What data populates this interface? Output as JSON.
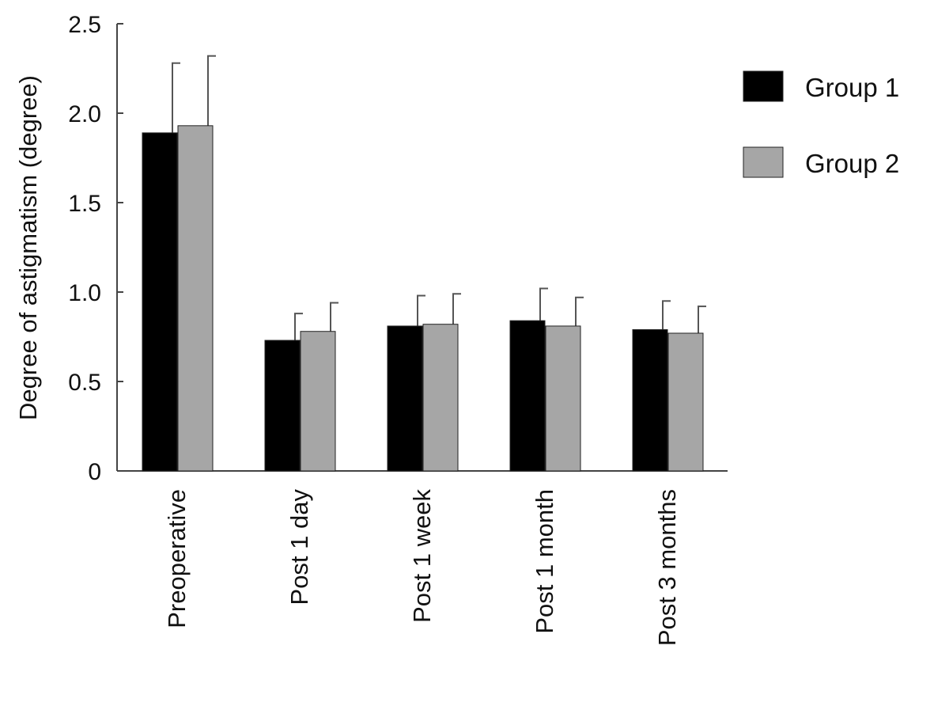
{
  "chart_data": {
    "type": "bar",
    "title": "",
    "xlabel": "",
    "ylabel": "Degree of astigmatism (degree)",
    "ylim": [
      0,
      2.5
    ],
    "yticks": [
      {
        "value": 0,
        "label": "0"
      },
      {
        "value": 0.5,
        "label": "0.5"
      },
      {
        "value": 1.0,
        "label": "1.0"
      },
      {
        "value": 1.5,
        "label": "1.5"
      },
      {
        "value": 2.0,
        "label": "2.0"
      },
      {
        "value": 2.5,
        "label": "2.5"
      }
    ],
    "categories": [
      "Preoperative",
      "Post 1 day",
      "Post 1 week",
      "Post 1 month",
      "Post 3 months"
    ],
    "series": [
      {
        "name": "Group 1",
        "color": "#000000",
        "values": [
          1.89,
          0.73,
          0.81,
          0.84,
          0.79
        ],
        "errors": [
          0.39,
          0.15,
          0.17,
          0.18,
          0.16
        ]
      },
      {
        "name": "Group 2",
        "color": "#a6a6a6",
        "values": [
          1.93,
          0.78,
          0.82,
          0.81,
          0.77
        ],
        "errors": [
          0.39,
          0.16,
          0.17,
          0.16,
          0.15
        ]
      }
    ],
    "grid": false,
    "legend_position": "top-right"
  }
}
